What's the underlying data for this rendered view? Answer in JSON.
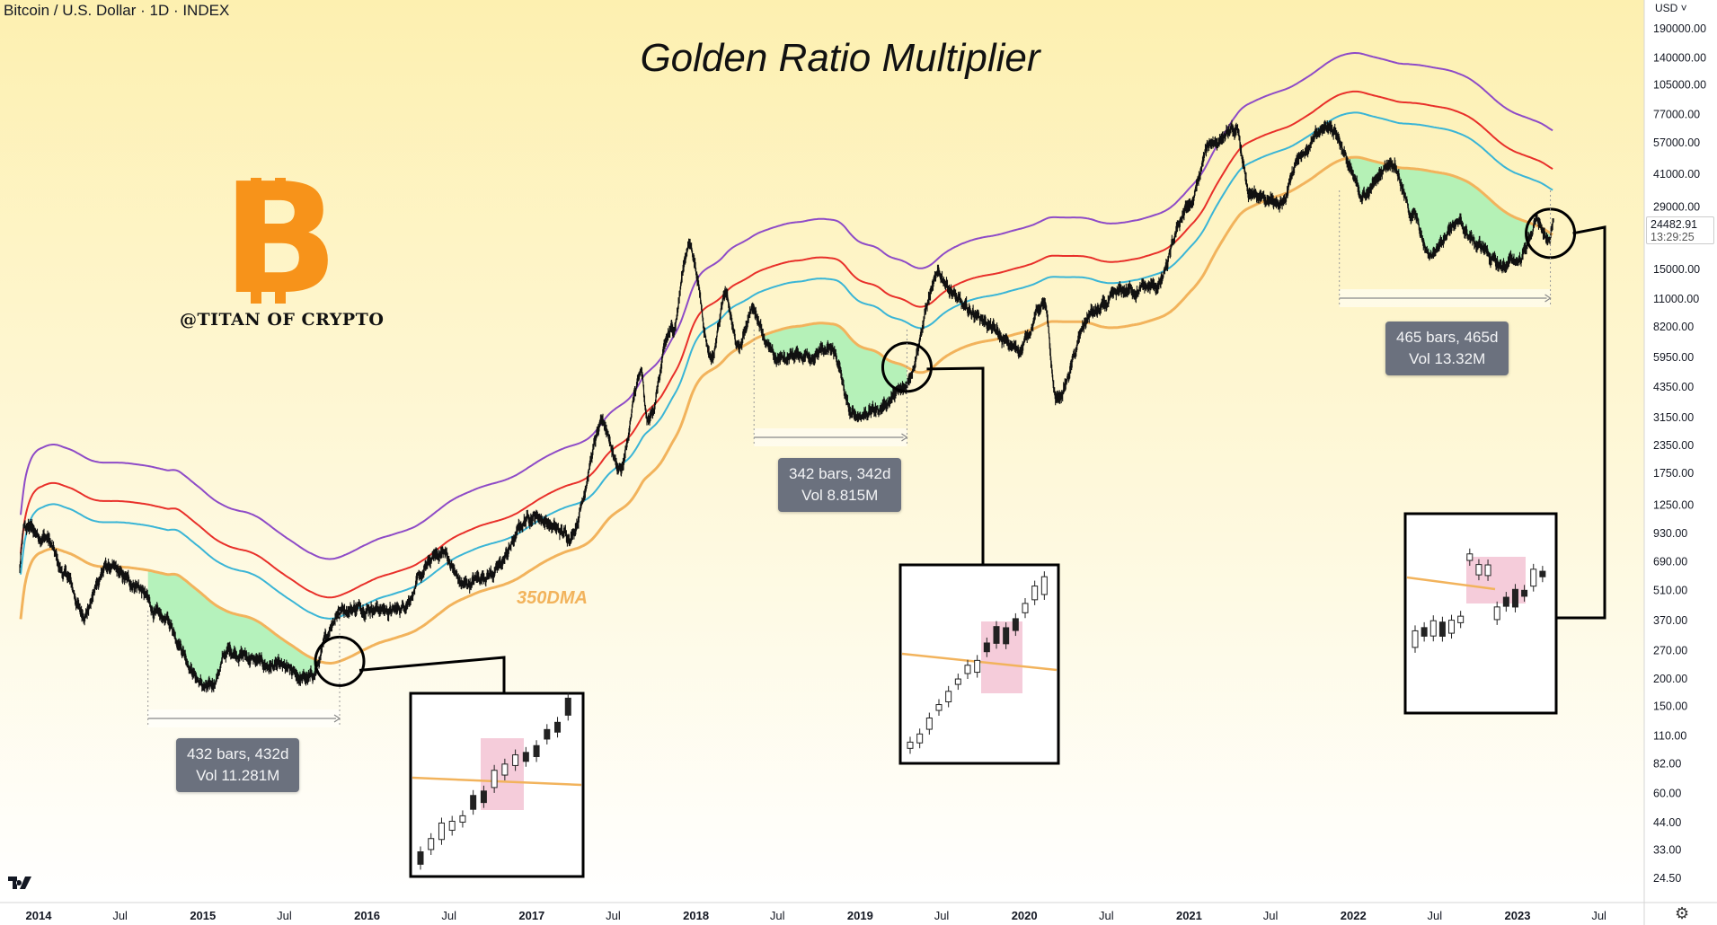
{
  "header": {
    "symbol_line": "Bitcoin / U.S. Dollar · 1D · INDEX",
    "currency": "USD"
  },
  "chart_title": "Golden Ratio Multiplier",
  "branding": {
    "handle": "@TITAN OF CRYPTO",
    "logo_glyph": "B"
  },
  "ma_label": "350DMA",
  "price_tag": {
    "price": "24482.91",
    "countdown": "13:29:25"
  },
  "measurements": [
    {
      "bars": "432 bars, 432d",
      "vol": "Vol 11.281M"
    },
    {
      "bars": "342 bars, 342d",
      "vol": "Vol 8.815M"
    },
    {
      "bars": "465 bars, 465d",
      "vol": "Vol 13.32M"
    }
  ],
  "colors": {
    "background_top": "#fdf0b0",
    "background_bottom": "#ffffff",
    "ma_350": "#f2b35c",
    "ma_x1_6": "#3ab5d6",
    "ma_x2": "#e8302a",
    "ma_x3": "#8e4bc7",
    "green_zone": "#a8f0b4",
    "highlight": "#f4c6d6",
    "bitcoin_orange": "#f7931a",
    "tooltip_bg": "#6b717e"
  },
  "chart_data": {
    "type": "line",
    "title": "Golden Ratio Multiplier",
    "yscale": "log",
    "ylim": [
      20,
      210000
    ],
    "y_ticks": [
      "190000.00",
      "140000.00",
      "105000.00",
      "77000.00",
      "57000.00",
      "41000.00",
      "29000.00",
      "15000.00",
      "11000.00",
      "8200.00",
      "5950.00",
      "4350.00",
      "3150.00",
      "2350.00",
      "1750.00",
      "1250.00",
      "930.00",
      "690.00",
      "510.00",
      "370.00",
      "270.00",
      "200.00",
      "150.00",
      "110.00",
      "82.00",
      "60.00",
      "44.00",
      "33.00",
      "24.50"
    ],
    "x_ticks": [
      "2014",
      "Jul",
      "2015",
      "Jul",
      "2016",
      "Jul",
      "2017",
      "Jul",
      "2018",
      "Jul",
      "2019",
      "Jul",
      "2020",
      "Jul",
      "2021",
      "Jul",
      "2022",
      "Jul",
      "2023",
      "Jul"
    ],
    "x_range": [
      "2014-01-01",
      "2023-07-20"
    ],
    "series": [
      {
        "name": "price",
        "style": "candles",
        "points": [
          [
            "2013-12-01",
            1000
          ],
          [
            "2014-01-15",
            900
          ],
          [
            "2014-03-01",
            600
          ],
          [
            "2014-04-10",
            400
          ],
          [
            "2014-06-01",
            650
          ],
          [
            "2014-08-01",
            550
          ],
          [
            "2014-10-01",
            380
          ],
          [
            "2015-01-14",
            180
          ],
          [
            "2015-03-01",
            270
          ],
          [
            "2015-06-01",
            230
          ],
          [
            "2015-08-24",
            200
          ],
          [
            "2015-11-04",
            420
          ],
          [
            "2016-01-01",
            430
          ],
          [
            "2016-03-01",
            410
          ],
          [
            "2016-06-17",
            760
          ],
          [
            "2016-08-02",
            540
          ],
          [
            "2016-10-01",
            610
          ],
          [
            "2017-01-04",
            1130
          ],
          [
            "2017-03-25",
            910
          ],
          [
            "2017-06-10",
            2900
          ],
          [
            "2017-07-16",
            1850
          ],
          [
            "2017-09-01",
            4900
          ],
          [
            "2017-09-15",
            3000
          ],
          [
            "2017-11-08",
            7800
          ],
          [
            "2017-12-17",
            19500
          ],
          [
            "2018-02-06",
            6000
          ],
          [
            "2018-03-05",
            11500
          ],
          [
            "2018-04-06",
            6500
          ],
          [
            "2018-05-05",
            9900
          ],
          [
            "2018-06-29",
            5800
          ],
          [
            "2018-08-10",
            6100
          ],
          [
            "2018-11-01",
            6300
          ],
          [
            "2018-12-15",
            3200
          ],
          [
            "2019-02-01",
            3400
          ],
          [
            "2019-04-01",
            4100
          ],
          [
            "2019-06-26",
            13800
          ],
          [
            "2019-09-01",
            9600
          ],
          [
            "2019-12-18",
            6500
          ],
          [
            "2020-02-13",
            10400
          ],
          [
            "2020-03-12",
            3850
          ],
          [
            "2020-06-01",
            9500
          ],
          [
            "2020-08-15",
            12000
          ],
          [
            "2020-10-20",
            12500
          ],
          [
            "2020-12-31",
            29000
          ],
          [
            "2021-02-21",
            58000
          ],
          [
            "2021-04-14",
            64000
          ],
          [
            "2021-05-19",
            32000
          ],
          [
            "2021-07-20",
            29800
          ],
          [
            "2021-09-07",
            52000
          ],
          [
            "2021-11-10",
            68000
          ],
          [
            "2022-01-24",
            33000
          ],
          [
            "2022-03-28",
            47500
          ],
          [
            "2022-05-12",
            27000
          ],
          [
            "2022-06-18",
            17600
          ],
          [
            "2022-08-14",
            24500
          ],
          [
            "2022-10-15",
            19000
          ],
          [
            "2022-11-21",
            15500
          ],
          [
            "2023-01-01",
            16600
          ],
          [
            "2023-02-16",
            24800
          ],
          [
            "2023-03-10",
            19600
          ],
          [
            "2023-03-22",
            24482.91
          ]
        ]
      },
      {
        "name": "350DMA",
        "multiplier": 1
      },
      {
        "name": "",
        "multiplier": 1.6
      },
      {
        "name": "",
        "multiplier": 2
      },
      {
        "name": "",
        "multiplier": 3
      }
    ],
    "annotations": {
      "ma_crosses": [
        "2015-11-01",
        "2019-04-15",
        "2023-03-15"
      ],
      "green_zones": [
        [
          "2014-09-01",
          "2015-11-01"
        ],
        [
          "2018-05-10",
          "2019-04-15"
        ],
        [
          "2021-12-01",
          "2023-03-15"
        ]
      ],
      "measure_ranges": [
        [
          "2014-09-01",
          "2015-11-01"
        ],
        [
          "2018-05-10",
          "2019-04-15"
        ],
        [
          "2021-12-01",
          "2023-03-15"
        ]
      ]
    }
  }
}
